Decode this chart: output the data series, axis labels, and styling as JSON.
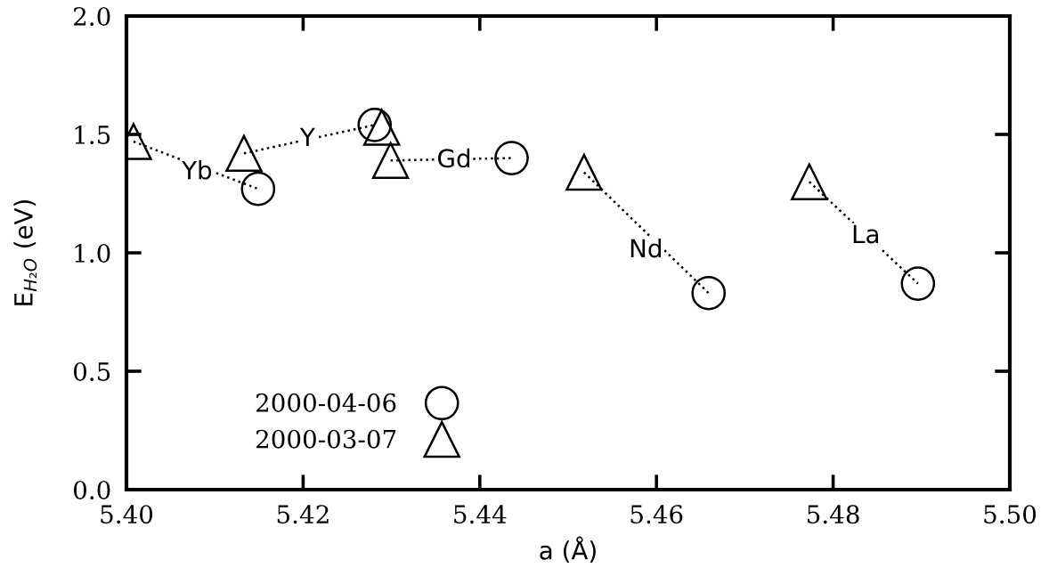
{
  "chart_data": {
    "type": "scatter",
    "xlabel": "a (Å)",
    "ylabel": "E$_{H₂O}$ (eV)",
    "xlim": [
      5.4,
      5.5
    ],
    "ylim": [
      0.0,
      2.0
    ],
    "xticks": [
      {
        "value": 5.4,
        "label": "5.40"
      },
      {
        "value": 5.42,
        "label": "5.42"
      },
      {
        "value": 5.44,
        "label": "5.44"
      },
      {
        "value": 5.46,
        "label": "5.46"
      },
      {
        "value": 5.48,
        "label": "5.48"
      },
      {
        "value": 5.5,
        "label": "5.50"
      }
    ],
    "yticks": [
      {
        "value": 0.0,
        "label": "0.0"
      },
      {
        "value": 0.5,
        "label": "0.5"
      },
      {
        "value": 1.0,
        "label": "1.0"
      },
      {
        "value": 1.5,
        "label": "1.5"
      },
      {
        "value": 2.0,
        "label": "2.0"
      }
    ],
    "grid": false,
    "legend": "bottom left",
    "series": [
      {
        "name": "2000-04-06",
        "marker": "circle",
        "color": "#000000",
        "x": [
          5.4149,
          5.4281,
          5.4436,
          5.4659,
          5.4896
        ],
        "values": [
          1.27,
          1.54,
          1.4,
          0.83,
          0.87
        ]
      },
      {
        "name": "2000-03-07",
        "marker": "triangle",
        "color": "#000000",
        "x": [
          5.4008,
          5.4133,
          5.4289,
          5.4299,
          5.4518,
          5.4773
        ],
        "values": [
          1.47,
          1.42,
          1.53,
          1.39,
          1.34,
          1.3
        ]
      },
      {
        "type": "line",
        "line_style": "dotted",
        "marker": "none",
        "color": "#000000",
        "x": [
          5.4008,
          5.4149
        ],
        "values": [
          1.47,
          1.27
        ]
      },
      {
        "type": "line",
        "line_style": "dotted",
        "marker": "none",
        "color": "#000000",
        "x": [
          5.4133,
          5.4281
        ],
        "values": [
          1.42,
          1.54
        ]
      },
      {
        "type": "line",
        "line_style": "dotted",
        "marker": "none",
        "color": "#000000",
        "x": [
          5.4299,
          5.4436
        ],
        "values": [
          1.39,
          1.4
        ]
      },
      {
        "type": "line",
        "line_style": "dotted",
        "marker": "none",
        "color": "#000000",
        "x": [
          5.4518,
          5.4659
        ],
        "values": [
          1.34,
          0.83
        ]
      },
      {
        "type": "line",
        "line_style": "dotted",
        "marker": "none",
        "color": "#000000",
        "x": [
          5.4773,
          5.4896
        ],
        "values": [
          1.3,
          0.87
        ]
      }
    ],
    "annotations": [
      {
        "text": "Yb",
        "x": 5.408,
        "y": 1.34
      },
      {
        "text": "Y",
        "x": 5.4205,
        "y": 1.48
      },
      {
        "text": "Gd",
        "x": 5.4371,
        "y": 1.39
      },
      {
        "text": "Nd",
        "x": 5.4588,
        "y": 1.01
      },
      {
        "text": "La",
        "x": 5.4837,
        "y": 1.07
      }
    ]
  }
}
